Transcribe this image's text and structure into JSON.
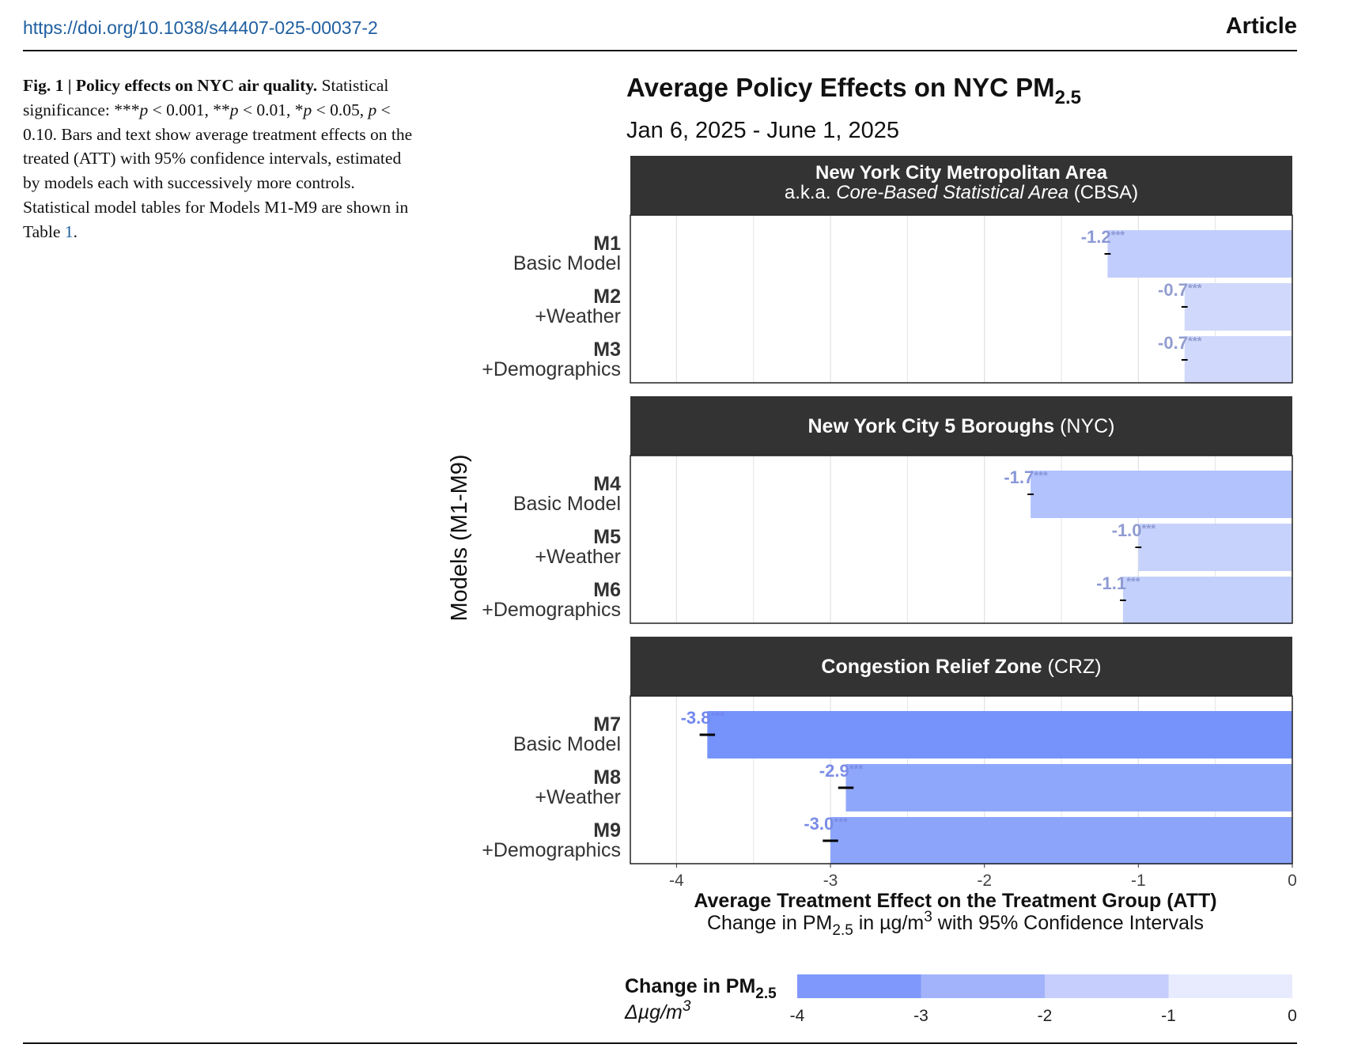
{
  "header": {
    "doi": "https://doi.org/10.1038/s44407-025-00037-2",
    "section": "Article"
  },
  "caption": {
    "fig_label": "Fig. 1 | Policy effects on NYC air quality.",
    "text_1": " Statistical significance: ***",
    "p1": "p",
    "text_2": " < 0.001, **",
    "p2": "p",
    "text_3": " < 0.01, *",
    "p3": "p",
    "text_4": " < 0.05, ",
    "p4": "p",
    "text_5": " < 0.10. Bars and text show average treatment effects on the treated (ATT) with 95% confidence intervals, estimated by models each with successively more controls. Statistical model tables for Models M1-M9 are shown in Table ",
    "table_ref": "1",
    "text_6": "."
  },
  "chart_data": {
    "type": "bar",
    "orientation": "horizontal",
    "title": "Average Policy Effects on NYC PM",
    "title_sub": "2.5",
    "subtitle": "Jan 6, 2025 - June 1, 2025",
    "ylabel": "Models (M1-M9)",
    "xlabel": "Average Treatment Effect on the Treatment Group (ATT)",
    "xlabel2_parts": [
      "Change in PM",
      "2.5",
      " in µg/m",
      "3",
      " with 95% Confidence Intervals"
    ],
    "xlim": [
      -4.3,
      0
    ],
    "xticks": [
      -4,
      -3,
      -2,
      -1,
      0
    ],
    "grid": true,
    "panels": [
      {
        "title_bold": "New York City Metropolitan Area",
        "title_normal": "",
        "title_line2_pre": "a.k.a. ",
        "title_line2_italic": "Core-Based Statistical Area",
        "title_line2_post": " (CBSA)",
        "models": [
          {
            "id": "M1",
            "desc": "Basic Model",
            "value": -1.2,
            "label": "-1.2",
            "stars": "***",
            "ci": [
              -1.22,
              -1.18
            ]
          },
          {
            "id": "M2",
            "desc": "+Weather",
            "value": -0.7,
            "label": "-0.7",
            "stars": "***",
            "ci": [
              -0.72,
              -0.68
            ]
          },
          {
            "id": "M3",
            "desc": "+Demographics",
            "value": -0.7,
            "label": "-0.7",
            "stars": "***",
            "ci": [
              -0.72,
              -0.68
            ]
          }
        ]
      },
      {
        "title_bold": "New York City 5 Boroughs",
        "title_normal": " (NYC)",
        "models": [
          {
            "id": "M4",
            "desc": "Basic Model",
            "value": -1.7,
            "label": "-1.7",
            "stars": "***",
            "ci": [
              -1.72,
              -1.68
            ]
          },
          {
            "id": "M5",
            "desc": "+Weather",
            "value": -1.0,
            "label": "-1.0",
            "stars": "***",
            "ci": [
              -1.02,
              -0.98
            ]
          },
          {
            "id": "M6",
            "desc": "+Demographics",
            "value": -1.1,
            "label": "-1.1",
            "stars": "***",
            "ci": [
              -1.12,
              -1.08
            ]
          }
        ]
      },
      {
        "title_bold": "Congestion Relief Zone",
        "title_normal": " (CRZ)",
        "models": [
          {
            "id": "M7",
            "desc": "Basic Model",
            "value": -3.8,
            "label": "-3.8",
            "stars": "***",
            "ci": [
              -3.85,
              -3.75
            ]
          },
          {
            "id": "M8",
            "desc": "+Weather",
            "value": -2.9,
            "label": "-2.9",
            "stars": "***",
            "ci": [
              -2.95,
              -2.85
            ]
          },
          {
            "id": "M9",
            "desc": "+Demographics",
            "value": -3.0,
            "label": "-3.0",
            "stars": "***",
            "ci": [
              -3.05,
              -2.95
            ]
          }
        ]
      }
    ],
    "legend": {
      "title": "Change in PM",
      "title_sub": "2.5",
      "unit": "Δµg/m",
      "unit_sup": "3",
      "range": [
        -4,
        0
      ],
      "ticks": [
        -4,
        -3,
        -2,
        -1,
        0
      ],
      "colors": [
        "#7f98fb",
        "#a3b3fb",
        "#c5cefc",
        "#e8ebfd"
      ]
    },
    "colors": {
      "strip_bg": "#333333",
      "strip_text": "#ffffff",
      "bar_strong": "#6f8ffa",
      "bar_weak": "#e4e8fd",
      "ci": "#000000"
    }
  }
}
